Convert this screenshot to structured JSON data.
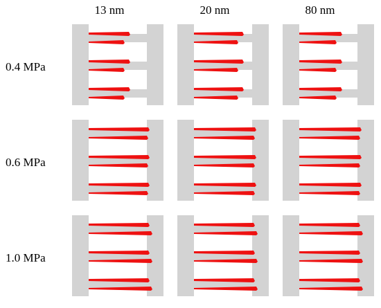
{
  "columns": [
    "13 nm",
    "20 nm",
    "80 nm"
  ],
  "rows": [
    "0.4 MPa",
    "0.6 MPa",
    "1.0 MPa"
  ]
}
